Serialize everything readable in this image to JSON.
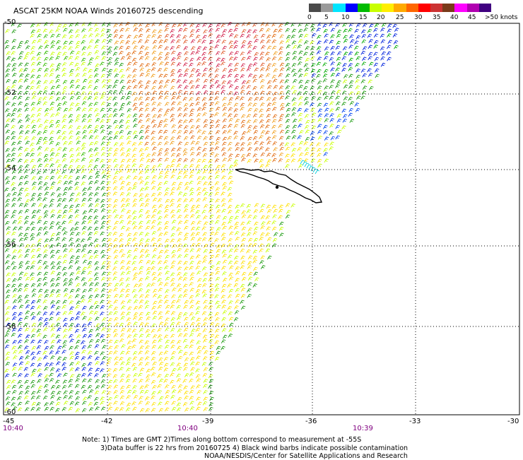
{
  "title": "ASCAT 25KM NOAA Winds 20160725 descending",
  "legend": {
    "colors": [
      "#4a4a4a",
      "#9a9a9a",
      "#00e5ff",
      "#0000ff",
      "#00bb00",
      "#c8ff00",
      "#ffee00",
      "#ffaa00",
      "#ff6600",
      "#ff0000",
      "#cc3333",
      "#7a3a1a",
      "#ff00ff",
      "#b000b0",
      "#400080"
    ],
    "labels": [
      "0",
      "5",
      "10",
      "15",
      "20",
      "25",
      "30",
      "35",
      "40",
      "45",
      ">50 knots"
    ]
  },
  "latitudes": [
    "-50",
    "-52",
    "-54",
    "-56",
    "-58",
    "-60"
  ],
  "longitudes": [
    "-45",
    "-42",
    "-39",
    "-36",
    "-33",
    "-30"
  ],
  "times": [
    "10:40",
    "10:40",
    "10:39"
  ],
  "notes": [
    "Note: 1) Times are GMT  2)Times along bottom correspond to measurement at -55S",
    "3)Data buffer is 22 hrs from 20160725  4) Black wind barbs indicate possible contamination",
    "NOAA/NESDIS/Center for Satellite Applications and Research"
  ],
  "map_data": {
    "lon_range": [
      -45,
      -30
    ],
    "lat_range": [
      -60,
      -50
    ],
    "wind_color_scale_knots": [
      0,
      5,
      10,
      15,
      20,
      25,
      30,
      35,
      40,
      45,
      50
    ]
  }
}
